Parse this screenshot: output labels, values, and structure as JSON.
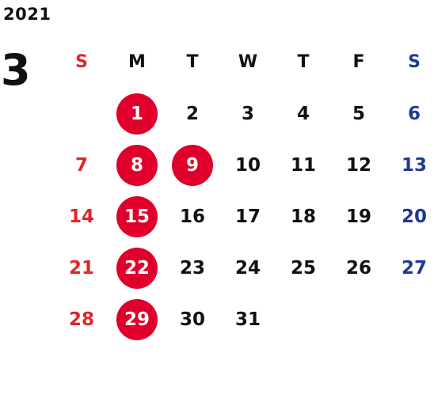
{
  "year": "2021",
  "month": "3",
  "weekday_headers": [
    "S",
    "M",
    "T",
    "W",
    "T",
    "F",
    "S"
  ],
  "weeks": [
    [
      "",
      "1",
      "2",
      "3",
      "4",
      "5",
      "6"
    ],
    [
      "7",
      "8",
      "9",
      "10",
      "11",
      "12",
      "13"
    ],
    [
      "14",
      "15",
      "16",
      "17",
      "18",
      "19",
      "20"
    ],
    [
      "21",
      "22",
      "23",
      "24",
      "25",
      "26",
      "27"
    ],
    [
      "28",
      "29",
      "30",
      "31",
      "",
      "",
      ""
    ]
  ],
  "highlighted_days": [
    "1",
    "8",
    "9",
    "15",
    "22",
    "29"
  ],
  "colors": {
    "sunday": "#e0252a",
    "saturday": "#1f3a93",
    "weekday": "#111111",
    "highlight_bg": "#e0002b",
    "highlight_text": "#ffffff"
  }
}
